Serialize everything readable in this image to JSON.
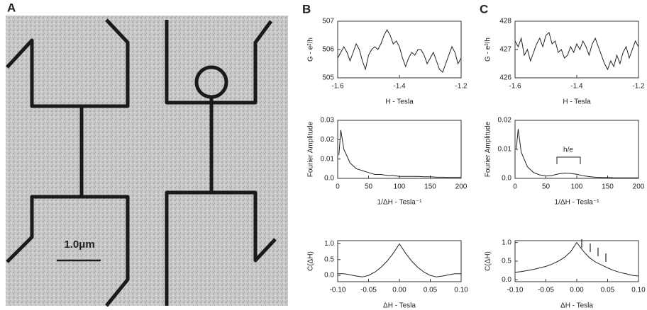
{
  "panel_labels": [
    "A",
    "B",
    "C"
  ],
  "scale_bar": "1.0μm",
  "chart_data": [
    {
      "type": "line",
      "x_label": "H - Tesla",
      "y_label": "G - e²/h",
      "color": "#222",
      "x": [
        -1.6,
        -1.59,
        -1.58,
        -1.57,
        -1.56,
        -1.55,
        -1.54,
        -1.53,
        -1.52,
        -1.51,
        -1.5,
        -1.49,
        -1.48,
        -1.47,
        -1.46,
        -1.45,
        -1.44,
        -1.43,
        -1.42,
        -1.41,
        -1.4,
        -1.39,
        -1.38,
        -1.37,
        -1.36,
        -1.35,
        -1.34,
        -1.33,
        -1.32,
        -1.31,
        -1.3,
        -1.29,
        -1.28,
        -1.27,
        -1.26,
        -1.25,
        -1.24,
        -1.23,
        -1.22,
        -1.21,
        -1.2
      ],
      "values": [
        505.7,
        505.9,
        506.1,
        505.9,
        505.6,
        505.9,
        506.2,
        506.0,
        505.6,
        505.3,
        505.8,
        506.0,
        506.1,
        506.0,
        506.2,
        506.5,
        506.7,
        506.5,
        506.2,
        506.3,
        506.1,
        505.7,
        505.4,
        505.7,
        505.9,
        505.8,
        506.0,
        506.0,
        505.8,
        505.5,
        505.7,
        505.9,
        505.6,
        505.3,
        505.2,
        505.5,
        505.8,
        506.1,
        505.9,
        505.5,
        505.7
      ],
      "xlim": [
        -1.6,
        -1.2
      ],
      "xticks": [
        -1.6,
        -1.4,
        -1.2
      ],
      "ylim": [
        505,
        507
      ],
      "yticks": [
        505,
        506,
        507
      ]
    },
    {
      "type": "line",
      "x_label": "1/ΔH - Tesla⁻¹",
      "y_label": "Fourier Amplitude",
      "color": "#222",
      "x": [
        2,
        5,
        10,
        20,
        30,
        40,
        50,
        60,
        70,
        80,
        90,
        100,
        110,
        120,
        130,
        140,
        150,
        160,
        170,
        180,
        190,
        200
      ],
      "values": [
        0.012,
        0.025,
        0.015,
        0.008,
        0.005,
        0.004,
        0.003,
        0.002,
        0.002,
        0.0015,
        0.0015,
        0.001,
        0.001,
        0.001,
        0.001,
        0.0008,
        0.0008,
        0.0006,
        0.0006,
        0.0005,
        0.0005,
        0.0005
      ],
      "xlim": [
        0,
        200
      ],
      "xticks": [
        0,
        50,
        100,
        150,
        200
      ],
      "ylim": [
        0,
        0.03
      ],
      "yticks": [
        {
          "value": 0,
          "label": "0.0"
        },
        0.01,
        0.02,
        0.03
      ]
    },
    {
      "type": "line",
      "x_label": "ΔH - Tesla",
      "y_label": "C(ΔH)",
      "color": "#222",
      "x": [
        -0.1,
        -0.09,
        -0.08,
        -0.07,
        -0.06,
        -0.05,
        -0.04,
        -0.03,
        -0.02,
        -0.01,
        0,
        0.01,
        0.02,
        0.03,
        0.04,
        0.05,
        0.06,
        0.07,
        0.08,
        0.09,
        0.1
      ],
      "values": [
        0.05,
        0.05,
        0.02,
        -0.02,
        -0.05,
        0.0,
        0.1,
        0.25,
        0.45,
        0.7,
        1.0,
        0.7,
        0.45,
        0.25,
        0.1,
        0.0,
        -0.05,
        -0.02,
        0.02,
        0.05,
        0.05
      ],
      "xlim": [
        -0.1,
        0.1
      ],
      "xticks": [
        {
          "value": -0.1,
          "label": "-0.10"
        },
        {
          "value": -0.05,
          "label": "-0.05"
        },
        {
          "value": 0,
          "label": "0.00"
        },
        {
          "value": 0.05,
          "label": "0.05"
        },
        {
          "value": 0.1,
          "label": "0.10"
        }
      ],
      "ylim": [
        -0.2,
        1.1
      ],
      "yticks": [
        {
          "value": 0,
          "label": "0.0"
        },
        0.5,
        {
          "value": 1,
          "label": "1.0"
        }
      ]
    },
    {
      "type": "line",
      "x_label": "H - Tesla",
      "y_label": "G - e²/h",
      "color": "#222",
      "x": [
        -1.6,
        -1.59,
        -1.58,
        -1.57,
        -1.56,
        -1.55,
        -1.54,
        -1.53,
        -1.52,
        -1.51,
        -1.5,
        -1.49,
        -1.48,
        -1.47,
        -1.46,
        -1.45,
        -1.44,
        -1.43,
        -1.42,
        -1.41,
        -1.4,
        -1.39,
        -1.38,
        -1.37,
        -1.36,
        -1.35,
        -1.34,
        -1.33,
        -1.32,
        -1.31,
        -1.3,
        -1.29,
        -1.28,
        -1.27,
        -1.26,
        -1.25,
        -1.24,
        -1.23,
        -1.22,
        -1.21,
        -1.2
      ],
      "values": [
        427.3,
        427.1,
        427.4,
        426.8,
        427.0,
        426.6,
        426.9,
        427.2,
        427.4,
        427.1,
        427.5,
        427.6,
        427.2,
        427.3,
        426.9,
        427.0,
        426.7,
        426.8,
        427.1,
        426.9,
        427.2,
        427.0,
        427.3,
        427.1,
        426.8,
        427.2,
        427.4,
        427.1,
        426.8,
        426.5,
        426.3,
        426.6,
        426.4,
        426.8,
        426.5,
        426.9,
        427.1,
        426.7,
        427.0,
        427.3,
        427.1
      ],
      "xlim": [
        -1.6,
        -1.2
      ],
      "xticks": [
        -1.6,
        -1.4,
        -1.2
      ],
      "ylim": [
        426,
        428
      ],
      "yticks": [
        426,
        427,
        428
      ]
    },
    {
      "type": "line",
      "x_label": "1/ΔH - Tesla⁻¹",
      "y_label": "Fourier Amplitude",
      "annotation": "h/e",
      "color": "#222",
      "x": [
        2,
        5,
        10,
        20,
        30,
        40,
        50,
        60,
        70,
        80,
        90,
        100,
        110,
        120,
        130,
        140,
        150,
        160,
        170,
        180,
        190,
        200
      ],
      "values": [
        0.01,
        0.017,
        0.009,
        0.004,
        0.002,
        0.0012,
        0.0008,
        0.001,
        0.0015,
        0.0018,
        0.0017,
        0.0014,
        0.0009,
        0.0006,
        0.0004,
        0.0003,
        0.0003,
        0.0002,
        0.0002,
        0.0002,
        0.0002,
        0.0002
      ],
      "xlim": [
        0,
        200
      ],
      "xticks": [
        0,
        50,
        100,
        150,
        200
      ],
      "ylim": [
        0,
        0.02
      ],
      "yticks": [
        {
          "value": 0,
          "label": "0.0"
        },
        0.01,
        0.02
      ]
    },
    {
      "type": "line",
      "x_label": "ΔH - Tesla",
      "y_label": "C(ΔH)",
      "color": "#222",
      "x": [
        -0.1,
        -0.09,
        -0.08,
        -0.07,
        -0.06,
        -0.05,
        -0.04,
        -0.03,
        -0.02,
        -0.01,
        0,
        0.01,
        0.02,
        0.03,
        0.04,
        0.05,
        0.06,
        0.07,
        0.08,
        0.09,
        0.1
      ],
      "values": [
        0.2,
        0.22,
        0.25,
        0.28,
        0.32,
        0.36,
        0.42,
        0.5,
        0.6,
        0.75,
        1.0,
        0.78,
        0.6,
        0.48,
        0.4,
        0.32,
        0.25,
        0.2,
        0.16,
        0.12,
        0.1
      ],
      "xlim": [
        -0.1,
        0.1
      ],
      "xticks": [
        {
          "value": -0.1,
          "label": "-0.10"
        },
        {
          "value": -0.05,
          "label": "-0.05"
        },
        {
          "value": 0,
          "label": "0.00"
        },
        {
          "value": 0.05,
          "label": "0.05"
        },
        {
          "value": 0.1,
          "label": "0.10"
        }
      ],
      "ylim": [
        -0.05,
        1.05
      ],
      "yticks": [
        {
          "value": 0,
          "label": "0.0"
        },
        0.5,
        {
          "value": 1,
          "label": "1.0"
        }
      ]
    }
  ]
}
